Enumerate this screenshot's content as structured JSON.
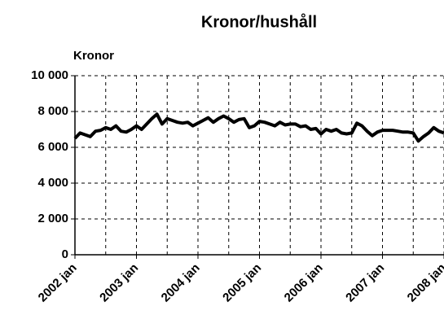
{
  "chart_data": {
    "type": "line",
    "title": "Kronor/hushåll",
    "y_label": "Kronor",
    "categories": [
      "2002 jan",
      null,
      null,
      null,
      null,
      null,
      null,
      null,
      null,
      null,
      null,
      null,
      "2003 jan",
      null,
      null,
      null,
      null,
      null,
      null,
      null,
      null,
      null,
      null,
      null,
      "2004 jan",
      null,
      null,
      null,
      null,
      null,
      null,
      null,
      null,
      null,
      null,
      null,
      "2005 jan",
      null,
      null,
      null,
      null,
      null,
      null,
      null,
      null,
      null,
      null,
      null,
      "2006 jan",
      null,
      null,
      null,
      null,
      null,
      null,
      null,
      null,
      null,
      null,
      null,
      "2007 jan",
      null,
      null,
      null,
      null,
      null,
      null,
      null,
      null,
      null,
      null,
      null,
      "2008 jan"
    ],
    "values": [
      6500,
      6800,
      6700,
      6600,
      6900,
      6950,
      7100,
      7000,
      7200,
      6900,
      6850,
      7000,
      7200,
      7000,
      7300,
      7600,
      7850,
      7300,
      7600,
      7500,
      7400,
      7350,
      7400,
      7200,
      7350,
      7500,
      7650,
      7400,
      7600,
      7750,
      7600,
      7400,
      7550,
      7600,
      7100,
      7200,
      7450,
      7400,
      7300,
      7200,
      7400,
      7250,
      7300,
      7300,
      7150,
      7200,
      7000,
      7050,
      6750,
      7000,
      6900,
      7000,
      6800,
      6750,
      6800,
      7350,
      7200,
      6900,
      6650,
      6850,
      6950,
      6950,
      6950,
      6900,
      6850,
      6850,
      6800,
      6350,
      6600,
      6800,
      7100,
      6900,
      6800
    ],
    "color": "#000000",
    "ylim": [
      0,
      10000
    ],
    "yticks": [
      0,
      {
        "value": 2000,
        "label": "2 000"
      },
      {
        "value": 4000,
        "label": "4 000"
      },
      {
        "value": 6000,
        "label": "6 000"
      },
      {
        "value": 8000,
        "label": "8 000"
      },
      {
        "value": 10000,
        "label": "10 000"
      }
    ],
    "grid": true
  }
}
